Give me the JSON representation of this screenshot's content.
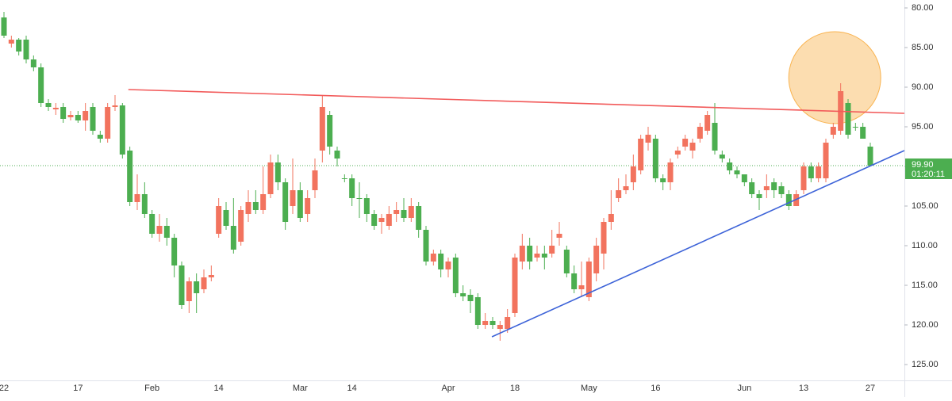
{
  "chart_data": {
    "type": "candlestick",
    "y_inverted": true,
    "ylim": [
      79,
      127
    ],
    "yticks": [
      {
        "value": 80,
        "label": "80.00"
      },
      {
        "value": 85,
        "label": "85.00"
      },
      {
        "value": 90,
        "label": "90.00"
      },
      {
        "value": 95,
        "label": "95.00"
      },
      {
        "value": 100,
        "label": "100.00"
      },
      {
        "value": 105,
        "label": "105.00"
      },
      {
        "value": 110,
        "label": "110.00"
      },
      {
        "value": 115,
        "label": "115.00"
      },
      {
        "value": 120,
        "label": "120.00"
      },
      {
        "value": 125,
        "label": "125.00"
      }
    ],
    "up_color": "#4cae50",
    "down_color": "#f2735e",
    "categories": [
      "22",
      null,
      null,
      null,
      null,
      null,
      null,
      null,
      null,
      null,
      "17",
      null,
      null,
      null,
      null,
      null,
      null,
      null,
      null,
      null,
      "Feb",
      null,
      null,
      null,
      null,
      null,
      null,
      null,
      null,
      "14",
      null,
      null,
      null,
      null,
      null,
      null,
      null,
      null,
      null,
      null,
      "Mar",
      null,
      null,
      null,
      null,
      null,
      null,
      "14",
      null,
      null,
      null,
      null,
      null,
      null,
      null,
      null,
      null,
      null,
      null,
      null,
      "Apr",
      null,
      null,
      null,
      null,
      null,
      null,
      null,
      null,
      "18",
      null,
      null,
      null,
      null,
      null,
      null,
      null,
      null,
      null,
      "May",
      null,
      null,
      null,
      null,
      null,
      null,
      null,
      null,
      "16",
      null,
      null,
      null,
      null,
      null,
      null,
      null,
      null,
      null,
      null,
      null,
      "Jun",
      null,
      null,
      null,
      null,
      null,
      null,
      null,
      "13",
      null,
      null,
      null,
      null,
      null,
      null,
      null,
      null,
      "27"
    ],
    "open": [
      81.2,
      84.5,
      84,
      84,
      86.5,
      87.5,
      92,
      92.8,
      92.5,
      93.8,
      93.5,
      94.2,
      92.5,
      96,
      96.5,
      92.5,
      92.3,
      98,
      104.5,
      103.5,
      106,
      108.5,
      107.5,
      109,
      112.5,
      117,
      114.5,
      115.5,
      114,
      108.5,
      105.5,
      107.5,
      109.5,
      106,
      104.5,
      105.5,
      103.5,
      99.5,
      102,
      105,
      103,
      106,
      103,
      98,
      93.5,
      98,
      101.5,
      101.5,
      104,
      104,
      106,
      107,
      107.5,
      106,
      105.5,
      106.5,
      105,
      108,
      112,
      111,
      113,
      111.5,
      116,
      116.2,
      116.5,
      120,
      119.5,
      120.5,
      120.5,
      118.5,
      112,
      110,
      111.5,
      111,
      111,
      109,
      110.5,
      113.5,
      115.5,
      116.5,
      113.5,
      111,
      107,
      104,
      103,
      102,
      100.5,
      97,
      96.5,
      101.5,
      102,
      98.5,
      97.5,
      98,
      96.5,
      95.5,
      94.5,
      98.5,
      99.5,
      100.5,
      101,
      102,
      103.5,
      103,
      102,
      102.5,
      103.5,
      105,
      103,
      100,
      101.5,
      101.5,
      96,
      95.5,
      92,
      95,
      95,
      97.5
    ],
    "close": [
      83.5,
      84,
      85.5,
      86.5,
      87.5,
      92,
      92.5,
      92.6,
      94,
      93.5,
      94.2,
      93,
      95.5,
      96.5,
      92.5,
      92.3,
      98.5,
      104.5,
      103.5,
      106,
      108.5,
      107.5,
      109,
      112.5,
      117.5,
      114.5,
      116,
      114,
      113.7,
      105,
      107.5,
      110.5,
      105.5,
      104.5,
      105.5,
      103.5,
      99.5,
      102,
      107,
      103,
      106.5,
      104,
      100.5,
      92.5,
      97.5,
      99,
      101.6,
      104,
      104,
      106,
      107.5,
      106.5,
      106,
      105.5,
      106.5,
      105,
      108,
      112,
      111,
      113,
      112,
      116,
      116.4,
      117,
      120,
      119.5,
      120,
      120,
      119,
      111.5,
      110,
      112,
      111,
      111.5,
      110,
      108.5,
      113.5,
      115.5,
      115,
      112,
      110,
      107,
      106,
      103,
      102.5,
      100,
      96.5,
      96,
      101.5,
      102,
      99.5,
      98,
      96.5,
      97,
      95,
      93.5,
      98,
      99,
      100.5,
      101,
      102,
      103.5,
      104,
      102.5,
      103,
      103.5,
      105,
      103.5,
      100,
      101.5,
      100,
      97,
      95,
      90.5,
      96,
      95.1,
      96.5,
      99.9
    ],
    "low": [
      80.5,
      83.5,
      83.8,
      83.5,
      86,
      87,
      91.5,
      92,
      92,
      93,
      93,
      92,
      92,
      95.5,
      92,
      91,
      92,
      97.5,
      101,
      102,
      105.5,
      106,
      106.5,
      108.5,
      112,
      114,
      113.5,
      113,
      112.5,
      104,
      104.5,
      104,
      105,
      103,
      103,
      100,
      98.5,
      98.5,
      101.5,
      99,
      102,
      103,
      99,
      91,
      93,
      97.5,
      101,
      101,
      102,
      103.5,
      105.5,
      106,
      105,
      104.5,
      104,
      104,
      104.5,
      107.5,
      110.5,
      110.5,
      111.5,
      111,
      115,
      115.5,
      116,
      118.5,
      119,
      119.5,
      118,
      111,
      108.5,
      109,
      110,
      110,
      108,
      107,
      110,
      112.5,
      112,
      111.5,
      109,
      106.5,
      103,
      101.5,
      101,
      98.5,
      96,
      95,
      96,
      101,
      99,
      97.5,
      96,
      96.5,
      94.5,
      93,
      92,
      98,
      99,
      100,
      101,
      101.5,
      103,
      101,
      101.5,
      102,
      103,
      103,
      99.5,
      99.5,
      99.5,
      96.5,
      94.5,
      89.5,
      91.5,
      94.5,
      94.5,
      97
    ],
    "high": [
      83.8,
      85,
      86,
      87,
      88,
      92.5,
      93,
      93.5,
      94.5,
      94.2,
      94.5,
      95.5,
      96,
      97,
      97,
      93,
      99,
      105,
      105.5,
      106.5,
      109,
      109.5,
      110,
      114,
      118,
      118.5,
      118.5,
      116,
      114.5,
      109,
      108,
      111,
      110,
      107,
      106,
      106,
      104,
      103,
      108,
      106,
      107,
      107,
      104,
      99.5,
      98.5,
      100,
      102,
      105,
      106.5,
      107,
      108,
      108.5,
      108,
      107,
      107,
      107,
      109,
      112.5,
      112.5,
      114,
      114,
      116.5,
      117,
      118.5,
      120.5,
      120.5,
      120.5,
      122,
      121,
      119,
      113,
      113,
      112,
      113,
      111.5,
      110,
      114,
      116,
      116.5,
      117,
      114.5,
      113,
      108,
      104.5,
      103.5,
      103,
      101,
      98,
      102,
      103,
      103,
      99,
      98,
      99,
      97,
      96,
      98.5,
      99.5,
      101,
      101.5,
      102.5,
      104,
      105.5,
      104,
      104,
      104,
      105.5,
      105,
      103.5,
      102,
      102,
      102,
      96.5,
      96,
      96.5,
      95.5,
      96.5,
      100
    ],
    "trendlines": [
      {
        "color": "#f25a5a",
        "start": [
          16.8,
          90.3
        ],
        "end": [
          121.6,
          93.3
        ]
      },
      {
        "color": "#3d63d8",
        "start": [
          65.9,
          121.5
        ],
        "end": [
          121.6,
          98
        ]
      }
    ],
    "highlight": {
      "color": "#f9b34f",
      "center": [
        112.2,
        88.8
      ],
      "radius": 5.8
    },
    "last_price": {
      "value": 99.9,
      "label": "99.90"
    },
    "countdown": "01:20:11"
  }
}
